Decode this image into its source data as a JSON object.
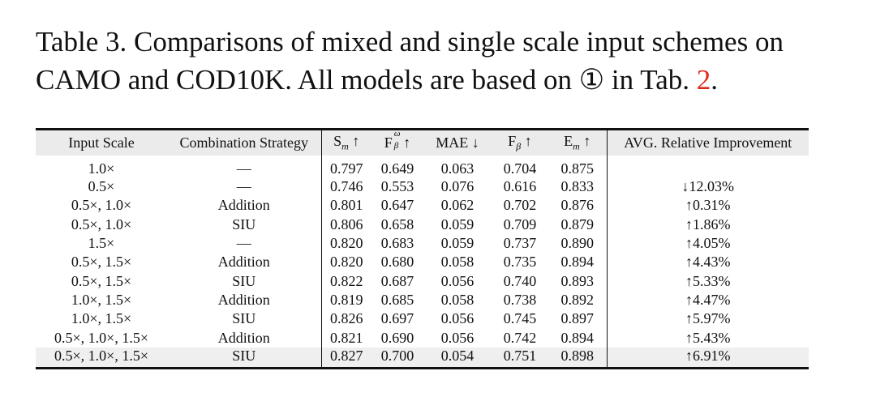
{
  "caption": {
    "prefix": "Table 3. Comparisons of mixed and single scale input schemes on CAMO and COD10K. All models are based on ① in Tab. ",
    "ref": "2",
    "suffix": "."
  },
  "table": {
    "headers": {
      "input_scale": "Input Scale",
      "combination": "Combination Strategy",
      "sm": "S",
      "sm_sub": "m",
      "fw": "F",
      "fw_sup": "ω",
      "fw_sub": "β",
      "mae": "MAE",
      "fb": "F",
      "fb_sub": "β",
      "em": "E",
      "em_sub": "m",
      "avg": "AVG. Relative Improvement",
      "up": "↑",
      "down": "↓"
    },
    "rows": [
      {
        "scale": "1.0×",
        "strategy": "—",
        "sm": "0.797",
        "fw": "0.649",
        "mae": "0.063",
        "fb": "0.704",
        "em": "0.875",
        "avg": ""
      },
      {
        "scale": "0.5×",
        "strategy": "—",
        "sm": "0.746",
        "fw": "0.553",
        "mae": "0.076",
        "fb": "0.616",
        "em": "0.833",
        "avg": "↓12.03%"
      },
      {
        "scale": "0.5×, 1.0×",
        "strategy": "Addition",
        "sm": "0.801",
        "fw": "0.647",
        "mae": "0.062",
        "fb": "0.702",
        "em": "0.876",
        "avg": "↑0.31%"
      },
      {
        "scale": "0.5×, 1.0×",
        "strategy": "SIU",
        "sm": "0.806",
        "fw": "0.658",
        "mae": "0.059",
        "fb": "0.709",
        "em": "0.879",
        "avg": "↑1.86%"
      },
      {
        "scale": "1.5×",
        "strategy": "—",
        "sm": "0.820",
        "fw": "0.683",
        "mae": "0.059",
        "fb": "0.737",
        "em": "0.890",
        "avg": "↑4.05%"
      },
      {
        "scale": "0.5×, 1.5×",
        "strategy": "Addition",
        "sm": "0.820",
        "fw": "0.680",
        "mae": "0.058",
        "fb": "0.735",
        "em": "0.894",
        "avg": "↑4.43%"
      },
      {
        "scale": "0.5×, 1.5×",
        "strategy": "SIU",
        "sm": "0.822",
        "fw": "0.687",
        "mae": "0.056",
        "fb": "0.740",
        "em": "0.893",
        "avg": "↑5.33%"
      },
      {
        "scale": "1.0×, 1.5×",
        "strategy": "Addition",
        "sm": "0.819",
        "fw": "0.685",
        "mae": "0.058",
        "fb": "0.738",
        "em": "0.892",
        "avg": "↑4.47%"
      },
      {
        "scale": "1.0×, 1.5×",
        "strategy": "SIU",
        "sm": "0.826",
        "fw": "0.697",
        "mae": "0.056",
        "fb": "0.745",
        "em": "0.897",
        "avg": "↑5.97%"
      },
      {
        "scale": "0.5×, 1.0×, 1.5×",
        "strategy": "Addition",
        "sm": "0.821",
        "fw": "0.690",
        "mae": "0.056",
        "fb": "0.742",
        "em": "0.894",
        "avg": "↑5.43%"
      },
      {
        "scale": "0.5×, 1.0×, 1.5×",
        "strategy": "SIU",
        "sm": "0.827",
        "fw": "0.700",
        "mae": "0.054",
        "fb": "0.751",
        "em": "0.898",
        "avg": "↑6.91%"
      }
    ]
  }
}
